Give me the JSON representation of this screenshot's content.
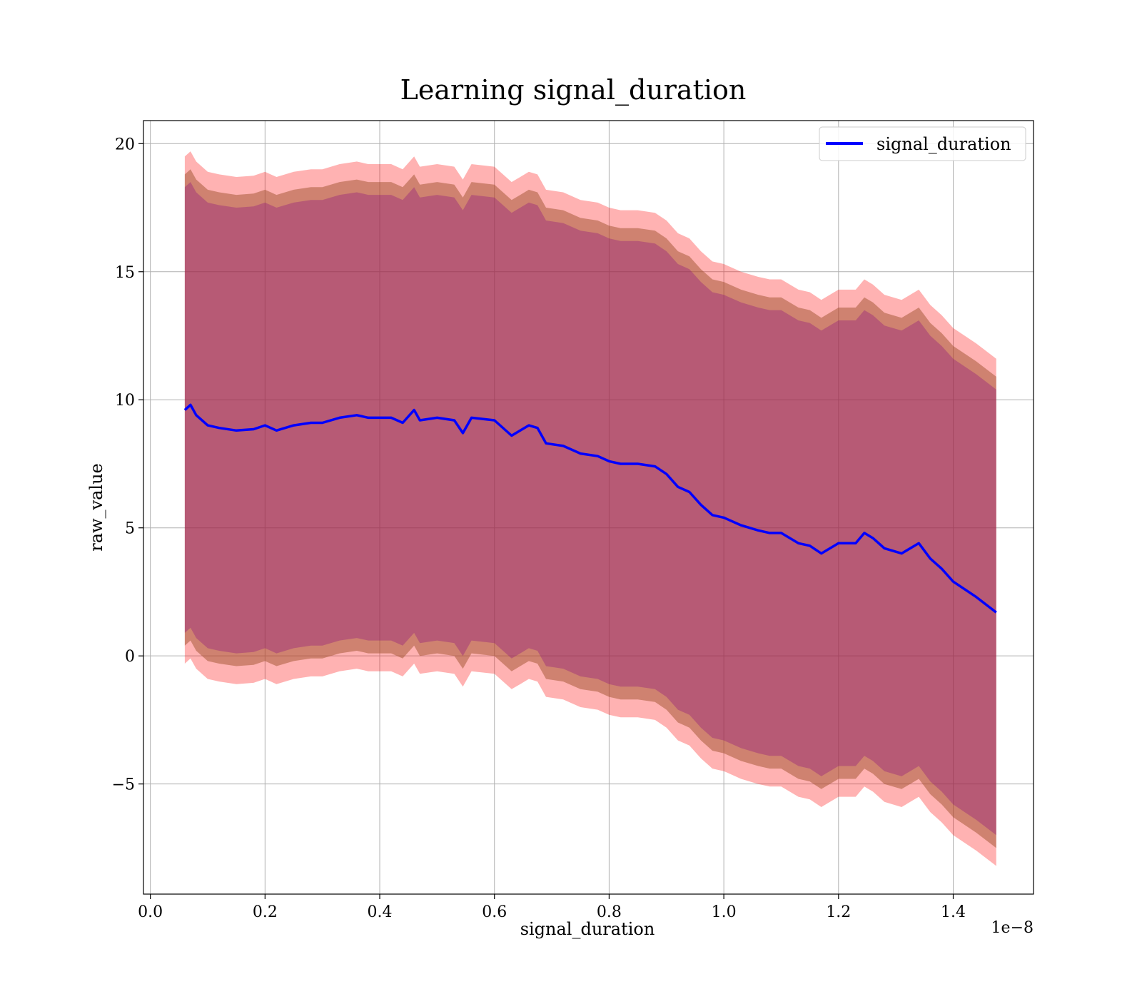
{
  "chart_data": {
    "type": "line",
    "title": "Learning signal_duration",
    "xlabel": "signal_duration",
    "ylabel": "raw_value",
    "x_offset_label": "1e−8",
    "xlim": [
      -0.012,
      1.54
    ],
    "ylim": [
      -9.3,
      20.9
    ],
    "xticks": [
      0.0,
      0.2,
      0.4,
      0.6,
      0.8,
      1.0,
      1.2,
      1.4
    ],
    "xtick_labels": [
      "0.0",
      "0.2",
      "0.4",
      "0.6",
      "0.8",
      "1.0",
      "1.2",
      "1.4"
    ],
    "yticks": [
      -5,
      0,
      5,
      10,
      15,
      20
    ],
    "ytick_labels": [
      "−5",
      "0",
      "5",
      "10",
      "15",
      "20"
    ],
    "grid": true,
    "legend_position": "upper right",
    "series": [
      {
        "name": "signal_duration",
        "color": "#0000ff",
        "x": [
          0.06,
          0.07,
          0.08,
          0.1,
          0.12,
          0.15,
          0.18,
          0.2,
          0.22,
          0.25,
          0.28,
          0.3,
          0.33,
          0.36,
          0.38,
          0.4,
          0.42,
          0.44,
          0.46,
          0.47,
          0.5,
          0.53,
          0.545,
          0.56,
          0.6,
          0.63,
          0.645,
          0.66,
          0.675,
          0.69,
          0.72,
          0.75,
          0.78,
          0.8,
          0.82,
          0.85,
          0.88,
          0.9,
          0.92,
          0.94,
          0.96,
          0.98,
          1.0,
          1.03,
          1.06,
          1.08,
          1.1,
          1.13,
          1.15,
          1.17,
          1.2,
          1.23,
          1.245,
          1.26,
          1.28,
          1.31,
          1.34,
          1.36,
          1.38,
          1.4,
          1.44,
          1.475
        ],
        "y": [
          9.6,
          9.8,
          9.4,
          9.0,
          8.9,
          8.8,
          8.85,
          9.0,
          8.8,
          9.0,
          9.1,
          9.1,
          9.3,
          9.4,
          9.3,
          9.3,
          9.3,
          9.1,
          9.6,
          9.2,
          9.3,
          9.2,
          8.7,
          9.3,
          9.2,
          8.6,
          8.8,
          9.0,
          8.9,
          8.3,
          8.2,
          7.9,
          7.8,
          7.6,
          7.5,
          7.5,
          7.4,
          7.1,
          6.6,
          6.4,
          5.9,
          5.5,
          5.4,
          5.1,
          4.9,
          4.8,
          4.8,
          4.4,
          4.3,
          4.0,
          4.4,
          4.4,
          4.8,
          4.6,
          4.2,
          4.0,
          4.4,
          3.8,
          3.4,
          2.9,
          2.3,
          1.7
        ]
      }
    ],
    "bands": [
      {
        "color": "#ff0000",
        "alpha": 0.3,
        "half_width": 9.9
      },
      {
        "color": "#a0522d",
        "alpha": 0.5,
        "half_width": 9.2
      },
      {
        "color": "#800080",
        "alpha": 0.3,
        "half_width": 8.7
      }
    ]
  }
}
